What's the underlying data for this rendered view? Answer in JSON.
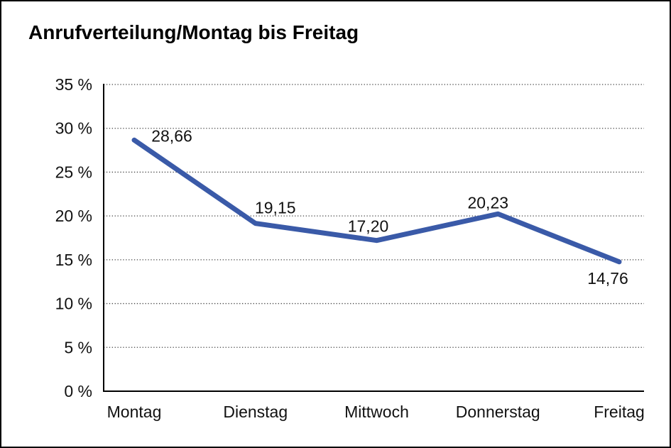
{
  "page": {
    "title": "Anrufverteilung/Montag bis Freitag"
  },
  "chart_data": {
    "type": "line",
    "title": "Anrufverteilung/Montag bis Freitag",
    "categories": [
      "Montag",
      "Dienstag",
      "Mittwoch",
      "Donnerstag",
      "Freitag"
    ],
    "series": [
      {
        "name": "Anrufverteilung",
        "values": [
          28.66,
          19.15,
          17.2,
          20.23,
          14.76
        ],
        "point_labels": [
          "28,66",
          "19,15",
          "17,20",
          "20,23",
          "14,76"
        ],
        "color": "#3A5AA8"
      }
    ],
    "xlabel": "",
    "ylabel": "",
    "ylim": [
      0,
      35
    ],
    "y_tick_step": 5,
    "y_tick_labels": [
      "0 %",
      "5 %",
      "10 %",
      "15 %",
      "20 %",
      "25 %",
      "30 %",
      "35 %"
    ],
    "grid": "horizontal-dotted",
    "legend": "none",
    "colors": {
      "axis": "#000000",
      "gridline": "#444444",
      "text": "#111111",
      "background": "#ffffff",
      "border": "#000000"
    }
  }
}
